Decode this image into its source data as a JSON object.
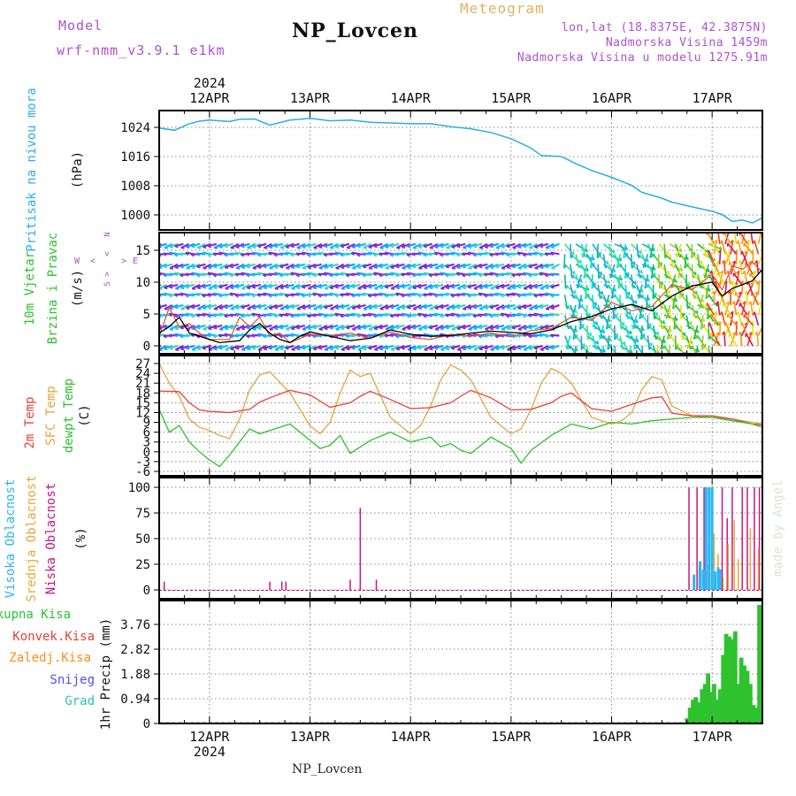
{
  "header": {
    "model_label": "Model",
    "model_name": "wrf-nmm_v3.9.1 e1km",
    "station": "NP_Lovcen",
    "product": "Meteogram",
    "lonlat": "lon,lat (18.8375E, 42.3875N)",
    "elevation": "Nadmorska Visina 1459m",
    "model_elevation": "Nadmorska Visina u modelu 1275.91m",
    "footer_station": "NP_Lovcen",
    "watermark": "made by Angel"
  },
  "colors": {
    "pressure": "#29aee8",
    "temp2m": "#e8403a",
    "sfc_temp": "#e3a53f",
    "dewpt": "#2ec22e",
    "high_cloud": "#29b6f6",
    "mid_cloud": "#e6a836",
    "low_cloud": "#c71585",
    "precip_total": "#2ec22e",
    "precip_conv": "#e8403a",
    "precip_frz": "#ff8c1a",
    "snow": "#5050e0",
    "graupel": "#2ec2b5",
    "header_purple": "#b050d0",
    "header_orange": "#e3b060"
  },
  "chart_data": [
    {
      "type": "line",
      "panel": "pressure",
      "ylabel_main": "Pritisak na nivou mora",
      "ylabel_unit": "(hPa)",
      "x_start_label": "2024",
      "x_ticks": [
        "12APR",
        "13APR",
        "14APR",
        "15APR",
        "16APR",
        "17APR"
      ],
      "x_range_days": [
        -0.5,
        5.5
      ],
      "ylim": [
        996,
        1028
      ],
      "y_ticks": [
        1000,
        1008,
        1016,
        1024
      ],
      "grid": true,
      "series": [
        {
          "values_x": [
            -0.5,
            -0.35,
            -0.2,
            -0.1,
            0,
            0.2,
            0.3,
            0.45,
            0.6,
            0.8,
            0.9,
            1.0,
            1.2,
            1.4,
            1.6,
            1.8,
            2.0,
            2.2,
            2.4,
            2.6,
            2.8,
            3.0,
            3.2,
            3.3,
            3.5,
            3.65,
            3.8,
            4.0,
            4.2,
            4.3,
            4.5,
            4.6,
            4.8,
            5.0,
            5.1,
            5.2,
            5.3,
            5.4,
            5.5
          ],
          "values_y": [
            1023.8,
            1023.2,
            1025.0,
            1025.7,
            1026.0,
            1025.6,
            1026.2,
            1026.3,
            1024.6,
            1026.0,
            1026.2,
            1026.5,
            1025.8,
            1026.0,
            1025.4,
            1025.2,
            1025.0,
            1025.0,
            1024.2,
            1023.6,
            1022.6,
            1020.9,
            1018.3,
            1016.3,
            1016.0,
            1014.0,
            1012.2,
            1010.3,
            1008.1,
            1006.2,
            1004.6,
            1003.5,
            1002.2,
            1001.0,
            1000.1,
            998.2,
            998.6,
            997.8,
            999.2
          ]
        }
      ]
    },
    {
      "type": "line",
      "panel": "wind",
      "ylabel_main": "10m Vjetar",
      "ylabel_sub": "Brzina i Pravac",
      "ylabel_unit": "(m/s)",
      "compass": {
        "north": "N",
        "west": "W",
        "east": "E",
        "south": "S",
        "arrow_left": "<",
        "arrow_right": ">"
      },
      "ylim": [
        -1,
        18
      ],
      "y_ticks": [
        0,
        5,
        10,
        15
      ],
      "grid": true,
      "series": [
        {
          "name": "speed",
          "values_x": [
            -0.5,
            -0.4,
            -0.3,
            -0.2,
            -0.1,
            0,
            0.1,
            0.3,
            0.4,
            0.5,
            0.6,
            0.7,
            0.8,
            0.9,
            1.0,
            1.2,
            1.4,
            1.6,
            1.8,
            2.0,
            2.2,
            2.4,
            2.6,
            2.8,
            3.0,
            3.2,
            3.4,
            3.6,
            3.8,
            4.0,
            4.2,
            4.4,
            4.6,
            4.8,
            5.0,
            5.1,
            5.2,
            5.3,
            5.4,
            5.5
          ],
          "values_y": [
            2.0,
            3.0,
            4.5,
            2.0,
            1.5,
            1.0,
            0.5,
            0.8,
            2.5,
            3.5,
            2.0,
            1.0,
            0.5,
            1.5,
            2.2,
            1.5,
            0.8,
            1.2,
            2.5,
            1.8,
            1.5,
            1.6,
            2.0,
            2.3,
            2.1,
            1.9,
            2.5,
            3.8,
            4.6,
            5.8,
            6.5,
            5.5,
            7.8,
            9.4,
            10.0,
            7.8,
            9.0,
            9.6,
            10.2,
            12.0
          ]
        },
        {
          "name": "gust",
          "values_x": [
            -0.5,
            -0.4,
            -0.3,
            -0.2,
            -0.1,
            0,
            0.2,
            0.3,
            0.4,
            0.5,
            0.6,
            0.7,
            0.8,
            1.0,
            1.2,
            1.4,
            1.6,
            1.8,
            2.0,
            2.2,
            2.4,
            2.6,
            2.8,
            3.0,
            3.2,
            3.4,
            3.6,
            3.8,
            4.0,
            4.2,
            4.4,
            4.6,
            4.8,
            5.0,
            5.1,
            5.2,
            5.3,
            5.4,
            5.5
          ],
          "values_y": [
            1.5,
            6.0,
            3.0,
            3.5,
            2.0,
            1.0,
            1.0,
            4.5,
            3.0,
            4.5,
            1.5,
            2.0,
            0.5,
            1.8,
            1.6,
            2.0,
            1.2,
            2.2,
            1.3,
            1.0,
            1.8,
            1.5,
            2.0,
            1.4,
            2.4,
            2.7,
            4.5,
            4.0,
            6.8,
            5.5,
            6.2,
            9.6,
            8.8,
            11.2,
            8.8,
            12.6,
            12.0,
            13.2,
            11.5
          ]
        }
      ]
    },
    {
      "type": "line",
      "panel": "temperature",
      "ylabel_main": "2m Temp",
      "ylabel_sub": "SFC Temp",
      "ylabel_third": "dewpt Temp",
      "ylabel_unit": "(C)",
      "ylim": [
        -6,
        29
      ],
      "y_ticks": [
        -6,
        -3,
        0,
        3,
        6,
        9,
        12,
        15,
        18,
        21,
        24,
        27
      ],
      "grid": true,
      "series": [
        {
          "name": "2m Temp",
          "values_x": [
            -0.5,
            -0.3,
            -0.2,
            -0.1,
            0,
            0.2,
            0.4,
            0.5,
            0.6,
            0.8,
            1.0,
            1.2,
            1.4,
            1.5,
            1.6,
            1.8,
            2.0,
            2.2,
            2.4,
            2.5,
            2.6,
            2.8,
            3.0,
            3.2,
            3.4,
            3.5,
            3.6,
            3.8,
            4.0,
            4.2,
            4.4,
            4.5,
            4.6,
            4.8,
            5.0,
            5.2,
            5.4,
            5.5
          ],
          "values_y": [
            18.6,
            18.4,
            15.0,
            12.8,
            12.4,
            12.0,
            13.0,
            15.2,
            16.5,
            18.8,
            17.4,
            13.6,
            15.0,
            17.0,
            18.5,
            16.0,
            13.2,
            13.5,
            15.0,
            17.0,
            18.8,
            16.5,
            12.8,
            13.0,
            15.0,
            17.0,
            18.0,
            13.2,
            12.4,
            14.5,
            16.5,
            16.8,
            11.8,
            11.0,
            11.0,
            10.0,
            8.5,
            8.2
          ]
        },
        {
          "name": "SFC Temp",
          "values_x": [
            -0.5,
            -0.4,
            -0.3,
            -0.2,
            -0.1,
            0,
            0.1,
            0.2,
            0.3,
            0.4,
            0.5,
            0.6,
            0.8,
            1.0,
            1.1,
            1.2,
            1.3,
            1.4,
            1.5,
            1.6,
            1.8,
            2.0,
            2.1,
            2.2,
            2.3,
            2.4,
            2.5,
            2.6,
            2.8,
            3.0,
            3.1,
            3.2,
            3.3,
            3.4,
            3.5,
            3.6,
            3.8,
            4.0,
            4.1,
            4.2,
            4.3,
            4.4,
            4.5,
            4.6,
            4.8,
            5.0,
            5.2,
            5.4,
            5.5
          ],
          "values_y": [
            27.0,
            21.0,
            17.0,
            10.0,
            7.5,
            6.5,
            5.0,
            4.0,
            10.0,
            19.0,
            23.5,
            24.5,
            18.0,
            8.0,
            5.5,
            9.0,
            18.0,
            25.0,
            23.0,
            24.0,
            10.5,
            5.5,
            8.0,
            14.0,
            22.0,
            26.5,
            25.0,
            22.0,
            10.5,
            5.5,
            7.0,
            13.0,
            21.0,
            25.5,
            24.0,
            21.0,
            10.5,
            8.5,
            9.5,
            12.0,
            19.0,
            23.0,
            22.0,
            14.0,
            11.0,
            10.5,
            10.0,
            9.0,
            8.5
          ]
        },
        {
          "name": "dewpt Temp",
          "values_x": [
            -0.5,
            -0.4,
            -0.3,
            -0.2,
            -0.1,
            0,
            0.1,
            0.2,
            0.3,
            0.4,
            0.5,
            0.6,
            0.8,
            1.0,
            1.1,
            1.2,
            1.3,
            1.4,
            1.6,
            1.8,
            2.0,
            2.2,
            2.3,
            2.4,
            2.5,
            2.6,
            2.8,
            3.0,
            3.1,
            3.2,
            3.4,
            3.6,
            3.8,
            4.0,
            4.2,
            4.4,
            4.6,
            4.8,
            5.0,
            5.2,
            5.4,
            5.5
          ],
          "values_y": [
            13.0,
            6.0,
            8.0,
            3.0,
            0.0,
            -2.5,
            -4.5,
            -1.0,
            3.0,
            7.0,
            5.5,
            6.5,
            8.5,
            3.5,
            1.0,
            2.0,
            5.0,
            -0.5,
            3.5,
            6.0,
            3.0,
            4.5,
            1.5,
            2.5,
            0.5,
            -0.5,
            4.5,
            1.0,
            -3.5,
            0.5,
            5.0,
            8.5,
            7.0,
            9.0,
            8.5,
            9.5,
            10.0,
            10.5,
            10.5,
            9.5,
            8.5,
            7.5
          ]
        }
      ]
    },
    {
      "type": "bar",
      "panel": "cloud",
      "ylabel_main": "Visoka Oblacnost",
      "ylabel_sub": "Srednja Oblacnost",
      "ylabel_third": "Niska Oblacnost",
      "ylabel_unit": "(%)",
      "ylim": [
        0,
        100
      ],
      "y_ticks": [
        0,
        25,
        50,
        75,
        100
      ],
      "grid": true,
      "series": [
        {
          "name": "Niska Oblacnost",
          "values_x": [
            -0.45,
            0.6,
            0.72,
            0.76,
            1.4,
            1.5,
            1.66,
            4.77,
            4.85,
            4.92,
            5.0,
            5.1,
            5.15,
            5.2,
            5.3,
            5.35,
            5.42,
            5.47
          ],
          "values_y": [
            8,
            8,
            8,
            8,
            10,
            80,
            10,
            100,
            100,
            100,
            100,
            100,
            70,
            100,
            100,
            100,
            100,
            100
          ]
        },
        {
          "name": "Srednja Oblacnost",
          "values_x": [
            4.87,
            4.96,
            5.02,
            5.06,
            5.11,
            5.16,
            5.22,
            5.26,
            5.38,
            5.46
          ],
          "values_y": [
            20,
            25,
            55,
            35,
            12,
            45,
            68,
            30,
            60,
            40
          ]
        },
        {
          "name": "Visoka Oblacnost",
          "values_x": [
            4.82,
            4.88,
            4.91,
            4.94,
            4.97,
            5.0,
            5.03,
            5.06,
            5.08
          ],
          "values_y": [
            15,
            28,
            20,
            100,
            100,
            100,
            18,
            22,
            20
          ]
        }
      ]
    },
    {
      "type": "bar",
      "panel": "precip",
      "legend": [
        "Ukupna Kisa",
        "Konvek.Kisa",
        "Zaledj.Kisa",
        "Snijeg",
        "Grad"
      ],
      "ylabel_unit": "1hr Precip (mm)",
      "ylim": [
        0,
        4.7
      ],
      "y_ticks": [
        0,
        0.94,
        1.88,
        2.82,
        3.76
      ],
      "grid": true,
      "series": [
        {
          "name": "Ukupna Kisa",
          "values_x": [
            4.75,
            4.78,
            4.81,
            4.84,
            4.87,
            4.9,
            4.93,
            4.96,
            4.99,
            5.02,
            5.05,
            5.08,
            5.11,
            5.14,
            5.17,
            5.2,
            5.23,
            5.26,
            5.29,
            5.32,
            5.35,
            5.38,
            5.41,
            5.44,
            5.47
          ],
          "values_y": [
            0.2,
            0.6,
            0.9,
            1.0,
            0.8,
            1.3,
            1.5,
            1.9,
            1.2,
            1.5,
            0.9,
            1.3,
            2.6,
            3.4,
            3.3,
            3.2,
            3.5,
            1.5,
            2.5,
            2.2,
            2.0,
            1.5,
            0.7,
            0.6,
            4.5
          ]
        }
      ],
      "bottom_labels": {
        "first_tick_date": "12APR",
        "year": "2024"
      }
    }
  ]
}
